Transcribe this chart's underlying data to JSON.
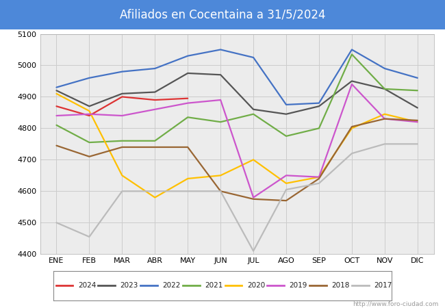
{
  "title": "Afiliados en Cocentaina a 31/5/2024",
  "title_bg_color": "#4d88d9",
  "title_text_color": "white",
  "ylim": [
    4400,
    5100
  ],
  "yticks": [
    4400,
    4500,
    4600,
    4700,
    4800,
    4900,
    5000,
    5100
  ],
  "months": [
    "ENE",
    "FEB",
    "MAR",
    "ABR",
    "MAY",
    "JUN",
    "JUL",
    "AGO",
    "SEP",
    "OCT",
    "NOV",
    "DIC"
  ],
  "series": {
    "2024": {
      "color": "#dd3333",
      "data": [
        4870,
        4840,
        4900,
        4890,
        4895,
        null,
        null,
        null,
        null,
        null,
        null,
        null
      ]
    },
    "2023": {
      "color": "#555555",
      "data": [
        4920,
        4870,
        4910,
        4915,
        4975,
        4970,
        4860,
        4845,
        4870,
        4950,
        4925,
        4865
      ]
    },
    "2022": {
      "color": "#4472c4",
      "data": [
        4930,
        4960,
        4980,
        4990,
        5030,
        5050,
        5025,
        4875,
        4880,
        5050,
        4990,
        4960
      ]
    },
    "2021": {
      "color": "#70ad47",
      "data": [
        4810,
        4755,
        4760,
        4760,
        4835,
        4820,
        4845,
        4775,
        4800,
        5035,
        4925,
        4920
      ]
    },
    "2020": {
      "color": "#ffc000",
      "data": [
        4910,
        4855,
        4650,
        4580,
        4640,
        4650,
        4700,
        4625,
        4645,
        4800,
        4845,
        4820
      ]
    },
    "2019": {
      "color": "#cc55cc",
      "data": [
        4840,
        4845,
        4840,
        4860,
        4880,
        4890,
        4580,
        4650,
        4645,
        4940,
        4830,
        4820
      ]
    },
    "2018": {
      "color": "#996633",
      "data": [
        4745,
        4710,
        4740,
        4740,
        4740,
        4600,
        4575,
        4570,
        4640,
        4805,
        4830,
        4825
      ]
    },
    "2017": {
      "color": "#bbbbbb",
      "data": [
        4500,
        4455,
        4600,
        4600,
        4600,
        4600,
        4410,
        4605,
        4625,
        4720,
        4750,
        4750
      ]
    }
  },
  "legend_order": [
    "2024",
    "2023",
    "2022",
    "2021",
    "2020",
    "2019",
    "2018",
    "2017"
  ],
  "watermark": "http://www.foro-ciudad.com",
  "grid_color": "#cccccc",
  "plot_bg_color": "#ececec"
}
